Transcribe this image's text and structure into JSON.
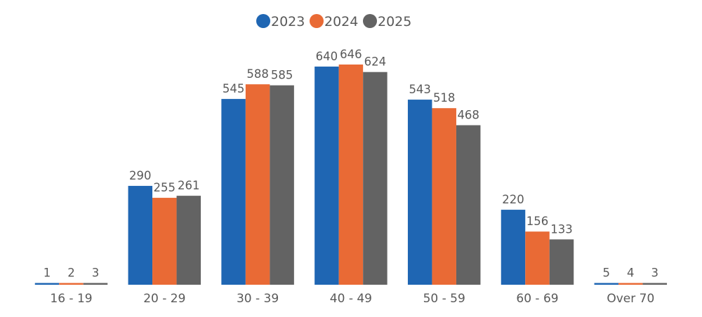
{
  "chart_data": {
    "type": "bar",
    "title": "",
    "xlabel": "",
    "ylabel": "",
    "categories": [
      "16 - 19",
      "20 - 29",
      "30 - 39",
      "40 - 49",
      "50 - 59",
      "60 - 69",
      "Over 70"
    ],
    "series": [
      {
        "name": "2023",
        "color": "#1f66b3",
        "values": [
          1,
          290,
          545,
          640,
          543,
          220,
          5
        ]
      },
      {
        "name": "2024",
        "color": "#e96a35",
        "values": [
          2,
          255,
          588,
          646,
          518,
          156,
          4
        ]
      },
      {
        "name": "2025",
        "color": "#636363",
        "values": [
          3,
          261,
          585,
          624,
          468,
          133,
          3
        ]
      }
    ],
    "ylim": [
      0,
      700
    ],
    "grid": false,
    "legend": "top-center",
    "data_labels": true
  }
}
